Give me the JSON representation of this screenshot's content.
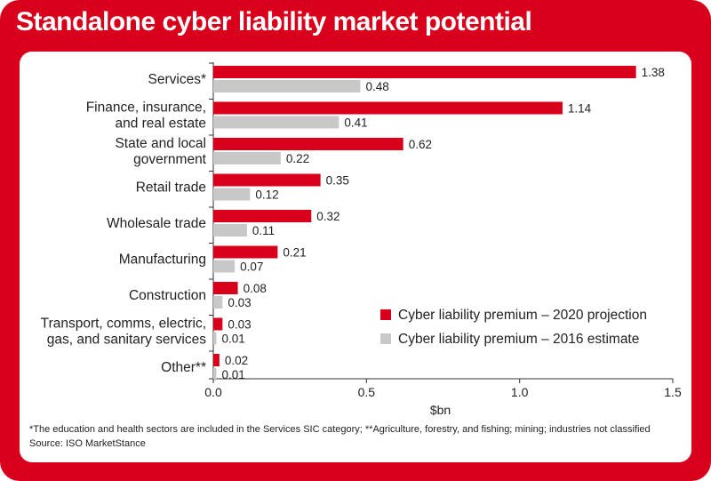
{
  "chart_data": {
    "type": "bar",
    "orientation": "horizontal",
    "title": "Standalone cyber liability market potential",
    "categories": [
      [
        "Services*"
      ],
      [
        "Finance, insurance,",
        "and real estate"
      ],
      [
        "State and local",
        "government"
      ],
      [
        "Retail trade"
      ],
      [
        "Wholesale trade"
      ],
      [
        "Manufacturing"
      ],
      [
        "Construction"
      ],
      [
        "Transport, comms, electric,",
        "gas, and sanitary services"
      ],
      [
        "Other**"
      ]
    ],
    "series": [
      {
        "name": "Cyber liability premium – 2020 projection",
        "color": "#d9001c",
        "values": [
          1.38,
          1.14,
          0.62,
          0.35,
          0.32,
          0.21,
          0.08,
          0.03,
          0.02
        ],
        "labels": [
          "1.38",
          "1.14",
          "0.62",
          "0.35",
          "0.32",
          "0.21",
          "0.08",
          "0.03",
          "0.02"
        ]
      },
      {
        "name": "Cyber liability premium – 2016 estimate",
        "color": "#c8c8c8",
        "values": [
          0.48,
          0.41,
          0.22,
          0.12,
          0.11,
          0.07,
          0.03,
          0.01,
          0.01
        ],
        "labels": [
          "0.48",
          "0.41",
          "0.22",
          "0.12",
          "0.11",
          "0.07",
          "0.03",
          "0.01",
          "0.01"
        ]
      }
    ],
    "xlim": [
      0,
      1.5
    ],
    "xticks": [
      0,
      0.5,
      1.0,
      1.5
    ],
    "xtick_labels": [
      "0.0",
      "0.5",
      "1.0",
      "1.5"
    ],
    "xlabel": "$bn",
    "ylabel": "",
    "legend_position": "bottom-right",
    "grid": false
  },
  "footnotes": {
    "note": "*The education and health sectors are included in the Services SIC category; **Agriculture, forestry, and fishing; mining; industries not classified",
    "source": "Source: ISO MarketStance"
  }
}
